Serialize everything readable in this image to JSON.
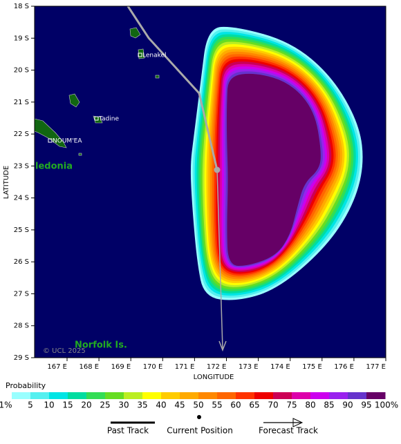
{
  "map": {
    "lat_labels": [
      "18 S",
      "19 S",
      "20 S",
      "21 S",
      "22 S",
      "23 S",
      "24 S",
      "25 S",
      "26 S",
      "27 S",
      "28 S",
      "29 S"
    ],
    "lon_labels": [
      "167 E",
      "168 E",
      "169 E",
      "170 E",
      "171 E",
      "172 E",
      "173 E",
      "174 E",
      "175 E",
      "176 E",
      "177 E"
    ],
    "y_axis_label": "LATITUDE",
    "x_axis_label": "LONGITUDE",
    "places": [
      "Lenakel",
      "Tadine",
      "NOUM'EA"
    ],
    "regions": [
      "ledonia",
      "Norfolk Is."
    ],
    "copyright": "© UCL 2025"
  },
  "legend": {
    "title": "Probability",
    "labels": [
      "1%",
      "5",
      "10",
      "15",
      "20",
      "25",
      "30",
      "35",
      "40",
      "45",
      "50",
      "55",
      "60",
      "65",
      "70",
      "75",
      "80",
      "85",
      "90",
      "95",
      "100%"
    ],
    "colors": [
      "#99ffff",
      "#55f0f0",
      "#00e5e5",
      "#00dda0",
      "#33dd55",
      "#66dd22",
      "#bbee22",
      "#ffff00",
      "#ffcc00",
      "#ffaa00",
      "#ff8800",
      "#ff6600",
      "#ff3300",
      "#ee0000",
      "#cc0055",
      "#dd00aa",
      "#cc00ee",
      "#9922ee",
      "#6633cc",
      "#660066"
    ],
    "items": [
      "Past Track",
      "Current Position",
      "Forecast Track"
    ]
  }
}
